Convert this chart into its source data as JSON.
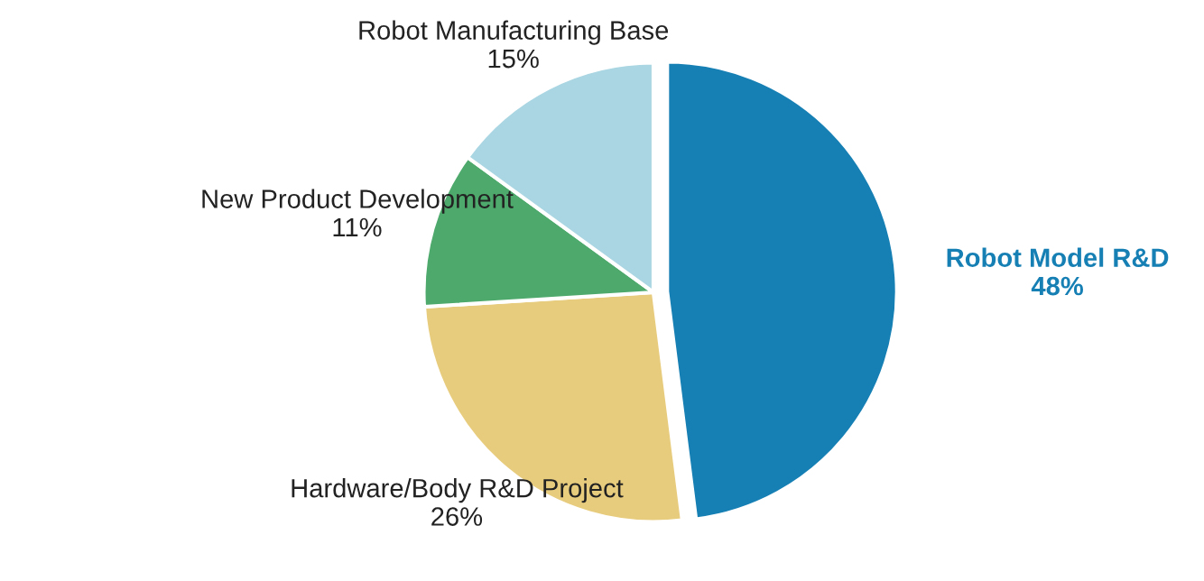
{
  "chart_data": {
    "type": "pie",
    "categories": [
      "Robot Model R&D",
      "Hardware/Body R&D Project",
      "New Product Development",
      "Robot Manufacturing Base"
    ],
    "values": [
      48,
      26,
      11,
      15
    ],
    "value_labels": [
      "48%",
      "26%",
      "11%",
      "15%"
    ],
    "colors": [
      "#167fb4",
      "#e8cc7e",
      "#4eaa6c",
      "#a9d6e2"
    ],
    "legend": false
  }
}
